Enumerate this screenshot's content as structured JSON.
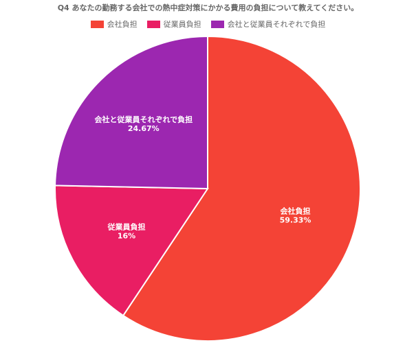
{
  "chart_data": {
    "type": "pie",
    "title": "Q4 あなたの勤務する会社での熱中症対策にかかる費用の負担について教えてください。",
    "categories": [
      "会社負担",
      "従業員負担",
      "会社と従業員それぞれで負担"
    ],
    "values": [
      59.33,
      16,
      24.67
    ],
    "value_labels": [
      "59.33%",
      "16%",
      "24.67%"
    ],
    "colors": [
      "#f44336",
      "#e91e63",
      "#9c27b0"
    ],
    "legend_position": "top"
  }
}
